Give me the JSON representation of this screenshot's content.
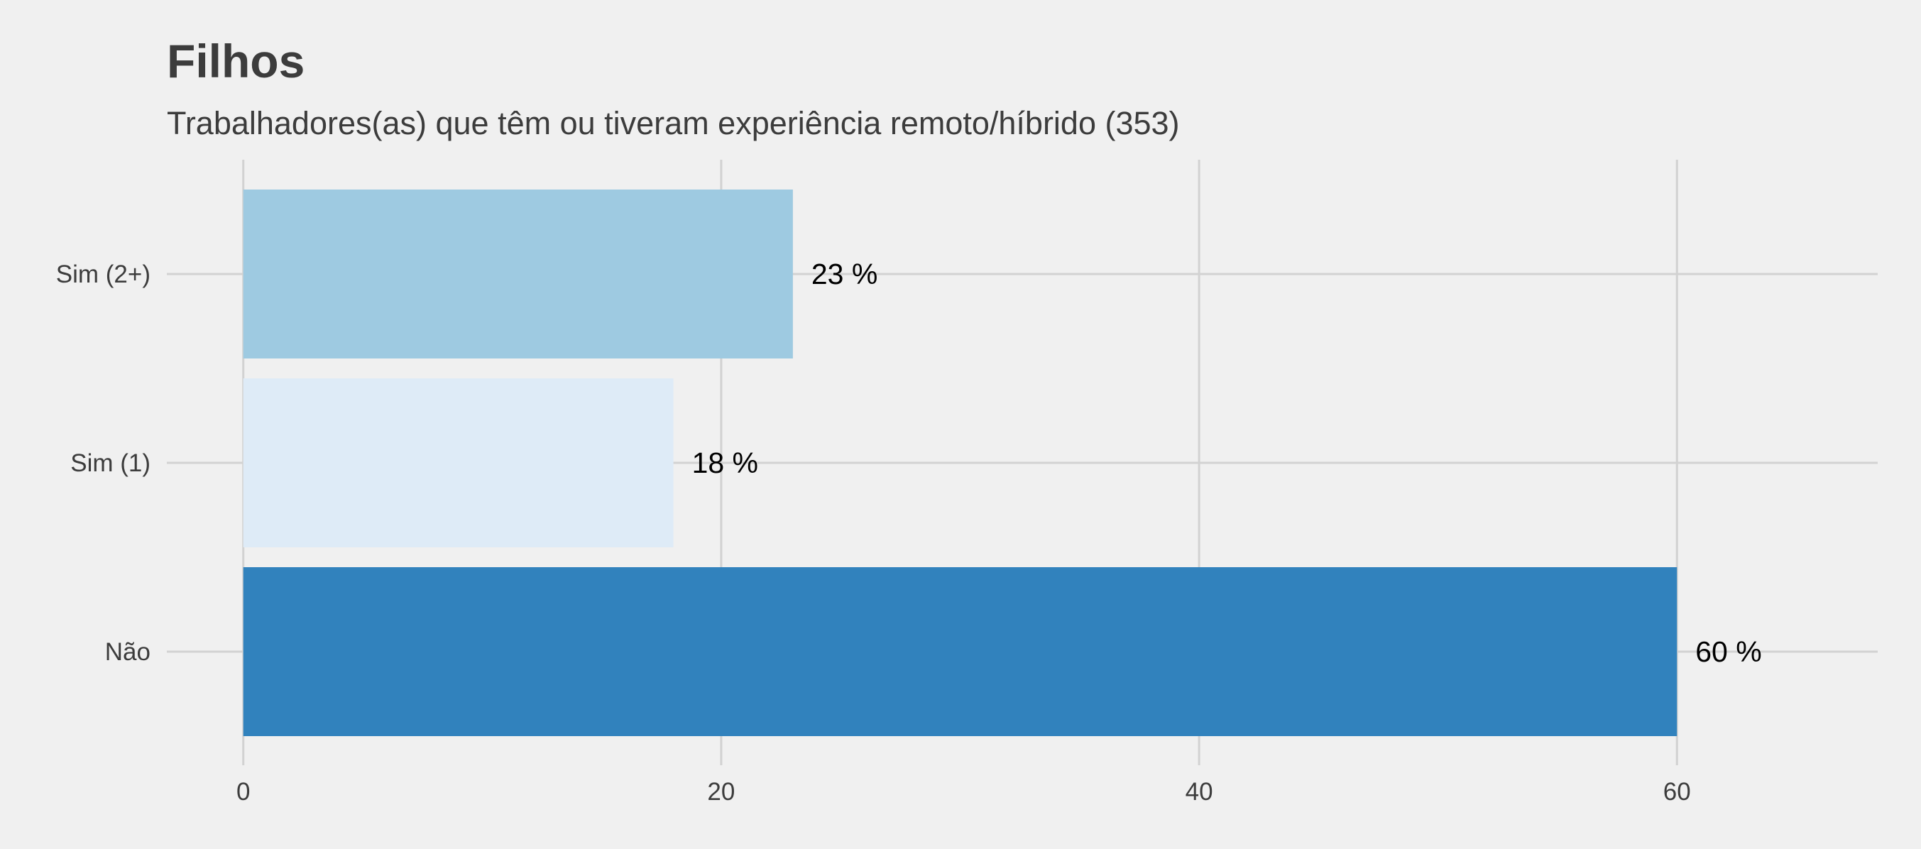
{
  "chart_data": {
    "type": "bar",
    "orientation": "horizontal",
    "title": "Filhos",
    "subtitle": "Trabalhadores(as) que têm ou tiveram experiência remoto/híbrido (353)",
    "categories": [
      "Sim (2+)",
      "Sim (1)",
      "Não"
    ],
    "values": [
      23,
      18,
      60
    ],
    "data_labels": [
      "23 %",
      "18 %",
      "60 %"
    ],
    "colors": [
      "#9ecae1",
      "#deebf7",
      "#3182bd"
    ],
    "xlabel": "",
    "ylabel": "",
    "xlim": [
      -3.2,
      68.4
    ],
    "xticks": [
      0,
      20,
      40,
      60
    ],
    "xtick_labels": [
      "0",
      "20",
      "40",
      "60"
    ],
    "grid": true,
    "legend": "none",
    "background": "#f0f0f0",
    "grid_color": "#d2d2d2"
  }
}
